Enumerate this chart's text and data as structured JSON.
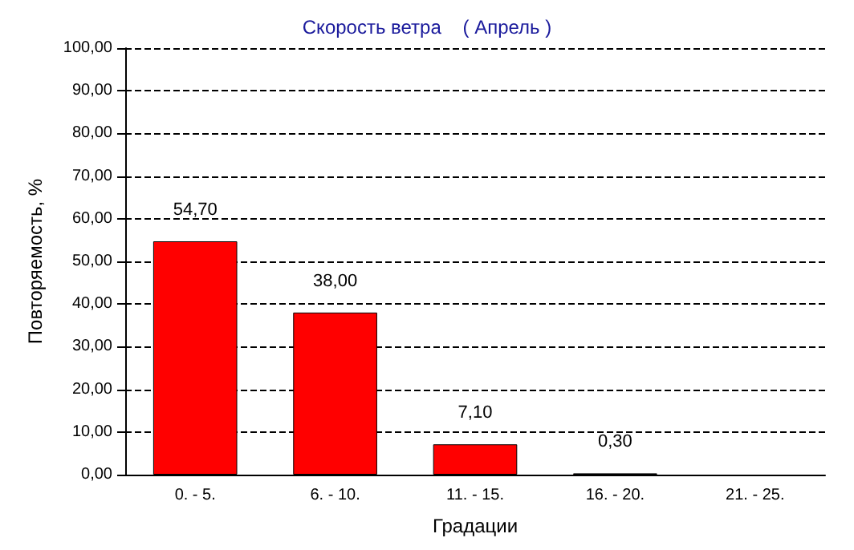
{
  "chart_data": {
    "type": "bar",
    "title": "Скорость ветра    ( Апрель )",
    "xlabel": "Градации",
    "ylabel": "Повторяемость, %",
    "categories": [
      "0. - 5.",
      "6. - 10.",
      "11. - 15.",
      "16. - 20.",
      "21. - 25."
    ],
    "values": [
      54.7,
      38.0,
      7.1,
      0.3,
      null
    ],
    "value_labels": [
      "54,70",
      "38,00",
      "7,10",
      "0,30",
      null
    ],
    "color": "#ff0000",
    "ylim": [
      0,
      100
    ],
    "yticks": [
      {
        "value": 0,
        "label": "0,00"
      },
      {
        "value": 10,
        "label": "10,00"
      },
      {
        "value": 20,
        "label": "20,00"
      },
      {
        "value": 30,
        "label": "30,00"
      },
      {
        "value": 40,
        "label": "40,00"
      },
      {
        "value": 50,
        "label": "50,00"
      },
      {
        "value": 60,
        "label": "60,00"
      },
      {
        "value": 70,
        "label": "70,00"
      },
      {
        "value": 80,
        "label": "80,00"
      },
      {
        "value": 90,
        "label": "90,00"
      },
      {
        "value": 100,
        "label": "100,00"
      }
    ],
    "grid": "y"
  }
}
